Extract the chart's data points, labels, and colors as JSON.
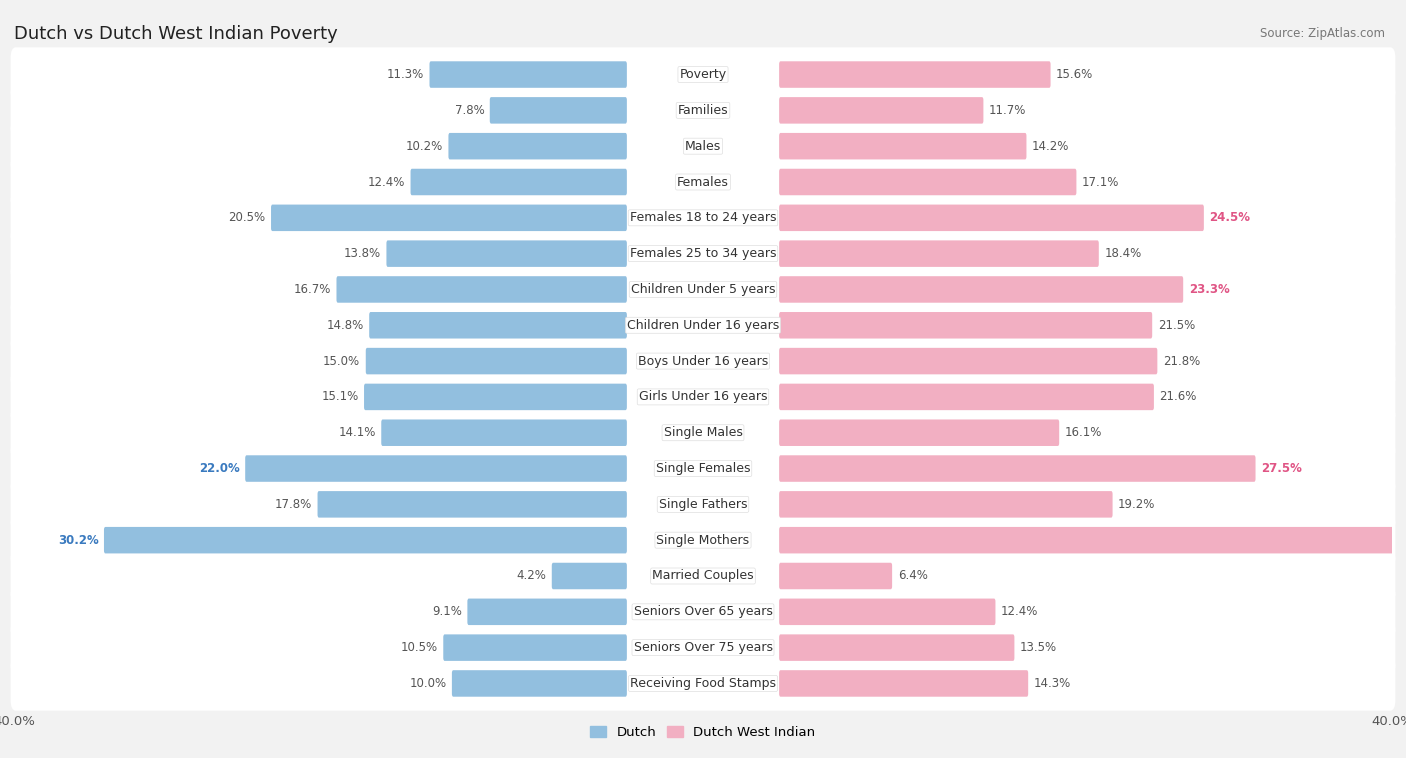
{
  "title": "Dutch vs Dutch West Indian Poverty",
  "source": "Source: ZipAtlas.com",
  "categories": [
    "Poverty",
    "Families",
    "Males",
    "Females",
    "Females 18 to 24 years",
    "Females 25 to 34 years",
    "Children Under 5 years",
    "Children Under 16 years",
    "Boys Under 16 years",
    "Girls Under 16 years",
    "Single Males",
    "Single Females",
    "Single Fathers",
    "Single Mothers",
    "Married Couples",
    "Seniors Over 65 years",
    "Seniors Over 75 years",
    "Receiving Food Stamps"
  ],
  "dutch": [
    11.3,
    7.8,
    10.2,
    12.4,
    20.5,
    13.8,
    16.7,
    14.8,
    15.0,
    15.1,
    14.1,
    22.0,
    17.8,
    30.2,
    4.2,
    9.1,
    10.5,
    10.0
  ],
  "dutch_west_indian": [
    15.6,
    11.7,
    14.2,
    17.1,
    24.5,
    18.4,
    23.3,
    21.5,
    21.8,
    21.6,
    16.1,
    27.5,
    19.2,
    36.8,
    6.4,
    12.4,
    13.5,
    14.3
  ],
  "dutch_color": "#92bfdf",
  "dutch_west_indian_color": "#f2afc2",
  "axis_max": 40.0,
  "background_color": "#f2f2f2",
  "row_bg_color": "#ffffff",
  "bar_height": 0.58,
  "title_fontsize": 13,
  "label_fontsize": 9,
  "value_fontsize": 8.5,
  "highlight_dutch_threshold": 22.0,
  "highlight_dwi_threshold": 22.0,
  "highlight_dutch_color": "#3a7abf",
  "highlight_dwi_color": "#e05585"
}
